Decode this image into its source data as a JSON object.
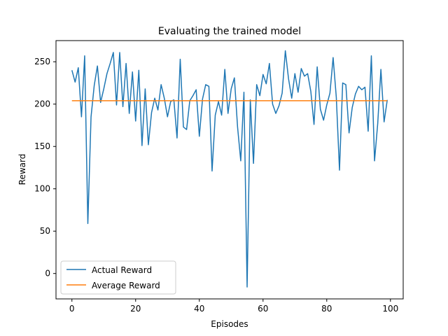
{
  "chart_data": {
    "type": "line",
    "title": "Evaluating the trained model",
    "xlabel": "Episodes",
    "ylabel": "Reward",
    "xlim": [
      -5,
      104
    ],
    "ylim": [
      -30,
      275
    ],
    "xticks": [
      0,
      20,
      40,
      60,
      80,
      100
    ],
    "yticks": [
      0,
      50,
      100,
      150,
      200,
      250
    ],
    "grid": false,
    "legend_position": "lower-left",
    "series": [
      {
        "name": "Actual Reward",
        "color": "#1f77b4",
        "x": [
          0,
          1,
          2,
          3,
          4,
          5,
          6,
          7,
          8,
          9,
          10,
          11,
          12,
          13,
          14,
          15,
          16,
          17,
          18,
          19,
          20,
          21,
          22,
          23,
          24,
          25,
          26,
          27,
          28,
          29,
          30,
          31,
          32,
          33,
          34,
          35,
          36,
          37,
          38,
          39,
          40,
          41,
          42,
          43,
          44,
          45,
          46,
          47,
          48,
          49,
          50,
          51,
          52,
          53,
          54,
          55,
          56,
          57,
          58,
          59,
          60,
          61,
          62,
          63,
          64,
          65,
          66,
          67,
          68,
          69,
          70,
          71,
          72,
          73,
          74,
          75,
          76,
          77,
          78,
          79,
          80,
          81,
          82,
          83,
          84,
          85,
          86,
          87,
          88,
          89,
          90,
          91,
          92,
          93,
          94,
          95,
          96,
          97,
          98,
          99
        ],
        "values": [
          240,
          226,
          243,
          185,
          257,
          59,
          185,
          222,
          245,
          202,
          218,
          236,
          248,
          261,
          199,
          261,
          197,
          248,
          189,
          238,
          180,
          240,
          151,
          218,
          152,
          190,
          207,
          193,
          223,
          207,
          185,
          203,
          205,
          160,
          253,
          173,
          170,
          204,
          210,
          217,
          162,
          206,
          223,
          221,
          121,
          187,
          203,
          187,
          241,
          189,
          218,
          231,
          173,
          133,
          214,
          -16,
          205,
          130,
          223,
          210,
          235,
          224,
          248,
          200,
          189,
          198,
          213,
          263,
          230,
          207,
          236,
          214,
          242,
          233,
          236,
          215,
          176,
          244,
          194,
          181,
          199,
          213,
          255,
          208,
          122,
          225,
          223,
          166,
          196,
          212,
          221,
          217,
          220,
          168,
          257,
          133,
          177,
          241,
          179,
          205
        ]
      },
      {
        "name": "Average Reward",
        "color": "#ff7f0e",
        "x": [
          0,
          99
        ],
        "values": [
          204,
          204
        ]
      }
    ]
  }
}
